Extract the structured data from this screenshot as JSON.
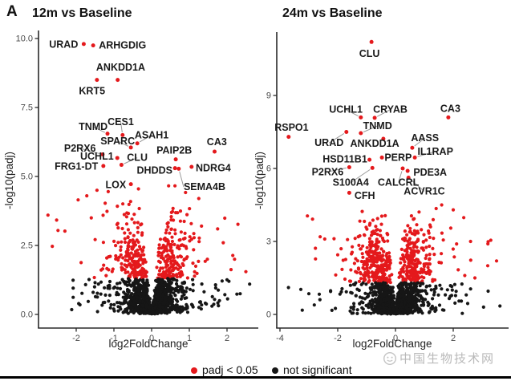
{
  "figure": {
    "panel_label": "A",
    "watermark_text": "中国生物技术网",
    "background": "#ffffff"
  },
  "colors": {
    "significant": "#e4191c",
    "not_significant": "#161616",
    "axis": "#2a2a2a",
    "tick_text": "#4a4a4a",
    "gene_label": "#1a1a1a",
    "leader_line": "#999999",
    "watermark": "#b9b9b9"
  },
  "legend": {
    "items": [
      {
        "label": "padj < 0.05",
        "color_key": "significant"
      },
      {
        "label": "not significant",
        "color_key": "not_significant"
      }
    ]
  },
  "chart_data": [
    {
      "type": "scatter",
      "variant": "volcano",
      "title": "12m vs Baseline",
      "xlabel": "log2FoldChange",
      "ylabel": "-log10(padj)",
      "xlim": [
        -3.0,
        2.85
      ],
      "ylim": [
        -0.4,
        10.8
      ],
      "xticks": [
        {
          "v": -2,
          "label": "-2"
        },
        {
          "v": -1,
          "label": "-1"
        },
        {
          "v": 0,
          "label": "0"
        },
        {
          "v": 1,
          "label": "1"
        },
        {
          "v": 2,
          "label": "2"
        }
      ],
      "yticks": [
        {
          "v": 0,
          "label": "0.0"
        },
        {
          "v": 2.5,
          "label": "2.5"
        },
        {
          "v": 5,
          "label": "5.0"
        },
        {
          "v": 7.5,
          "label": "7.5"
        },
        {
          "v": 10,
          "label": "10.0"
        }
      ],
      "significance_threshold": 1.301,
      "grid": false,
      "labeled_genes": [
        {
          "gene": "URAD",
          "point": [
            -1.8,
            9.8
          ],
          "label_at": [
            -1.95,
            9.78
          ],
          "anchor": "end",
          "leader": false
        },
        {
          "gene": "ARHGDIG",
          "point": [
            -1.55,
            9.75
          ],
          "label_at": [
            -1.4,
            9.76
          ],
          "anchor": "start",
          "leader": false
        },
        {
          "gene": "ANKDD1A",
          "point": [
            -0.9,
            8.5
          ],
          "label_at": [
            -0.82,
            8.95
          ],
          "anchor": "middle",
          "leader": false
        },
        {
          "gene": "KRT5",
          "point": [
            -1.45,
            8.5
          ],
          "label_at": [
            -1.58,
            8.1
          ],
          "anchor": "middle",
          "leader": false
        },
        {
          "gene": "TNMD",
          "point": [
            -1.17,
            6.55
          ],
          "label_at": [
            -1.55,
            6.8
          ],
          "anchor": "middle",
          "leader": true
        },
        {
          "gene": "CES1",
          "point": [
            -0.77,
            6.5
          ],
          "label_at": [
            -0.82,
            6.98
          ],
          "anchor": "middle",
          "leader": true
        },
        {
          "gene": "SPARC",
          "point": [
            -0.55,
            6.05
          ],
          "label_at": [
            -0.9,
            6.28
          ],
          "anchor": "middle",
          "leader": true
        },
        {
          "gene": "ASAH1",
          "point": [
            -0.38,
            6.2
          ],
          "label_at": [
            0.0,
            6.5
          ],
          "anchor": "middle",
          "leader": true
        },
        {
          "gene": "P2RX6",
          "point": [
            -1.3,
            5.8
          ],
          "label_at": [
            -1.9,
            6.02
          ],
          "anchor": "middle",
          "leader": true
        },
        {
          "gene": "UCHL1",
          "point": [
            -0.91,
            5.67
          ],
          "label_at": [
            -1.45,
            5.72
          ],
          "anchor": "middle",
          "leader": false
        },
        {
          "gene": "CLU",
          "point": [
            -0.8,
            5.42
          ],
          "label_at": [
            -0.38,
            5.68
          ],
          "anchor": "middle",
          "leader": true
        },
        {
          "gene": "PAIP2B",
          "point": [
            0.64,
            5.62
          ],
          "label_at": [
            0.6,
            5.95
          ],
          "anchor": "middle",
          "leader": false
        },
        {
          "gene": "CA3",
          "point": [
            1.67,
            5.9
          ],
          "label_at": [
            1.73,
            6.25
          ],
          "anchor": "middle",
          "leader": false
        },
        {
          "gene": "FRG1-DT",
          "point": [
            -1.28,
            5.38
          ],
          "label_at": [
            -1.42,
            5.36
          ],
          "anchor": "end",
          "leader": false
        },
        {
          "gene": "DHDDS",
          "point": [
            0.62,
            5.3
          ],
          "label_at": [
            0.08,
            5.22
          ],
          "anchor": "middle",
          "leader": false
        },
        {
          "gene": "NDRG4",
          "point": [
            1.06,
            5.35
          ],
          "label_at": [
            1.17,
            5.3
          ],
          "anchor": "start",
          "leader": false
        },
        {
          "gene": "LOX",
          "point": [
            -0.55,
            4.72
          ],
          "label_at": [
            -0.95,
            4.7
          ],
          "anchor": "middle",
          "leader": false
        },
        {
          "gene": "SEMA4B",
          "point": [
            0.72,
            5.28
          ],
          "label_at": [
            0.85,
            4.62
          ],
          "anchor": "start",
          "leader": true
        }
      ],
      "extra_points": [
        [
          -2.75,
          3.6
        ],
        [
          -2.52,
          3.42
        ],
        [
          -2.3,
          3.02
        ],
        [
          -1.95,
          4.15
        ],
        [
          -1.72,
          4.3
        ],
        [
          -1.6,
          3.5
        ],
        [
          -1.45,
          4.5
        ],
        [
          -1.15,
          4.45
        ],
        [
          -0.35,
          4.55
        ],
        [
          0.9,
          4.42
        ],
        [
          1.25,
          4.2
        ],
        [
          1.75,
          3.1
        ],
        [
          1.9,
          2.6
        ],
        [
          2.2,
          2.0
        ],
        [
          2.5,
          1.55
        ],
        [
          0.45,
          4.66
        ],
        [
          0.62,
          4.66
        ],
        [
          -1.9,
          0.35
        ],
        [
          -1.55,
          0.8
        ],
        [
          -1.5,
          1.15
        ],
        [
          1.6,
          0.3
        ],
        [
          1.8,
          0.5
        ],
        [
          2.05,
          1.2
        ],
        [
          2.35,
          0.75
        ],
        [
          2.6,
          1.1
        ]
      ],
      "point_cloud": {
        "note": "approximation of unlabeled transcripts",
        "n": 1500,
        "seed": 42,
        "x_sigma": 0.42,
        "slope": 3.2,
        "y_cap": 4.4,
        "x_range": [
          -2.85,
          2.7
        ]
      }
    },
    {
      "type": "scatter",
      "variant": "volcano",
      "title": "24m vs Baseline",
      "xlabel": "log2FoldChange",
      "ylabel": "-log10(padj)",
      "xlim": [
        -4.1,
        3.9
      ],
      "ylim": [
        -0.4,
        11.6
      ],
      "xticks": [
        {
          "v": -4,
          "label": "-4"
        },
        {
          "v": -2,
          "label": "-2"
        },
        {
          "v": 0,
          "label": "0"
        },
        {
          "v": 2,
          "label": "2"
        }
      ],
      "yticks": [
        {
          "v": 0,
          "label": "0"
        },
        {
          "v": 3,
          "label": "3"
        },
        {
          "v": 6,
          "label": "6"
        },
        {
          "v": 9,
          "label": "9"
        }
      ],
      "significance_threshold": 1.301,
      "grid": false,
      "labeled_genes": [
        {
          "gene": "CLU",
          "point": [
            -0.83,
            11.2
          ],
          "label_at": [
            -0.9,
            10.72
          ],
          "anchor": "middle",
          "leader": false
        },
        {
          "gene": "UCHL1",
          "point": [
            -1.2,
            8.1
          ],
          "label_at": [
            -1.72,
            8.42
          ],
          "anchor": "middle",
          "leader": true
        },
        {
          "gene": "CRYAB",
          "point": [
            -0.72,
            8.08
          ],
          "label_at": [
            -0.18,
            8.42
          ],
          "anchor": "middle",
          "leader": true
        },
        {
          "gene": "CA3",
          "point": [
            1.83,
            8.1
          ],
          "label_at": [
            1.9,
            8.45
          ],
          "anchor": "middle",
          "leader": false
        },
        {
          "gene": "RSPO1",
          "point": [
            -3.7,
            7.3
          ],
          "label_at": [
            -3.6,
            7.68
          ],
          "anchor": "middle",
          "leader": false
        },
        {
          "gene": "TNMD",
          "point": [
            -1.2,
            7.45
          ],
          "label_at": [
            -0.62,
            7.75
          ],
          "anchor": "middle",
          "leader": true
        },
        {
          "gene": "URAD",
          "point": [
            -1.7,
            7.5
          ],
          "label_at": [
            -2.3,
            7.05
          ],
          "anchor": "middle",
          "leader": true
        },
        {
          "gene": "ANKDD1A",
          "point": [
            -0.42,
            7.22
          ],
          "label_at": [
            -0.72,
            7.02
          ],
          "anchor": "middle",
          "leader": false
        },
        {
          "gene": "AASS",
          "point": [
            0.58,
            6.85
          ],
          "label_at": [
            1.02,
            7.25
          ],
          "anchor": "middle",
          "leader": true
        },
        {
          "gene": "HSD11B1",
          "point": [
            -0.9,
            6.36
          ],
          "label_at": [
            -1.75,
            6.38
          ],
          "anchor": "middle",
          "leader": false
        },
        {
          "gene": "PERP",
          "point": [
            -0.47,
            6.45
          ],
          "label_at": [
            -0.38,
            6.45
          ],
          "anchor": "start",
          "leader": false
        },
        {
          "gene": "IL1RAP",
          "point": [
            0.67,
            6.45
          ],
          "label_at": [
            1.38,
            6.7
          ],
          "anchor": "middle",
          "leader": true
        },
        {
          "gene": "P2RX6",
          "point": [
            -1.6,
            6.05
          ],
          "label_at": [
            -2.35,
            5.86
          ],
          "anchor": "middle",
          "leader": true
        },
        {
          "gene": "PDE3A",
          "point": [
            0.42,
            5.9
          ],
          "label_at": [
            0.62,
            5.84
          ],
          "anchor": "start",
          "leader": true
        },
        {
          "gene": "S100A4",
          "point": [
            -0.8,
            6.02
          ],
          "label_at": [
            -1.55,
            5.42
          ],
          "anchor": "middle",
          "leader": true
        },
        {
          "gene": "CALCRL",
          "point": [
            0.25,
            6.0
          ],
          "label_at": [
            0.1,
            5.42
          ],
          "anchor": "middle",
          "leader": true
        },
        {
          "gene": "ACVR1C",
          "point": [
            0.45,
            5.62
          ],
          "label_at": [
            1.0,
            5.06
          ],
          "anchor": "middle",
          "leader": true
        },
        {
          "gene": "CFH",
          "point": [
            -1.6,
            5.0
          ],
          "label_at": [
            -1.42,
            4.88
          ],
          "anchor": "start",
          "leader": false
        }
      ],
      "extra_points": [
        [
          -3.05,
          4.05
        ],
        [
          -2.45,
          3.1
        ],
        [
          -2.0,
          2.45
        ],
        [
          -1.85,
          1.85
        ],
        [
          2.6,
          3.0
        ],
        [
          3.2,
          2.9
        ],
        [
          3.5,
          2.2
        ],
        [
          2.4,
          1.6
        ],
        [
          2.75,
          1.5
        ],
        [
          3.3,
          3.05
        ],
        [
          -1.75,
          1.45
        ],
        [
          2.0,
          4.3
        ],
        [
          1.6,
          4.5
        ],
        [
          -3.0,
          0.85
        ],
        [
          -1.55,
          0.9
        ],
        [
          1.9,
          0.75
        ],
        [
          1.95,
          1.15
        ],
        [
          2.1,
          0.95
        ],
        [
          2.2,
          0.55
        ],
        [
          2.3,
          1.25
        ],
        [
          2.45,
          0.8
        ],
        [
          2.5,
          0.45
        ],
        [
          2.6,
          1.05
        ],
        [
          3.05,
          0.3
        ]
      ],
      "point_cloud": {
        "note": "approximation of unlabeled transcripts",
        "n": 1600,
        "seed": 7,
        "x_sigma": 0.5,
        "slope": 3.3,
        "y_cap": 4.6,
        "x_range": [
          -3.9,
          3.8
        ]
      }
    }
  ]
}
